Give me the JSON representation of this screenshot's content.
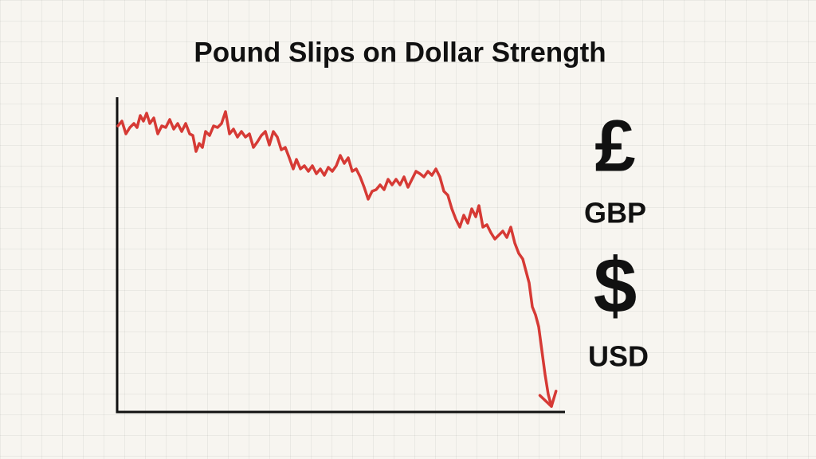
{
  "chart_data": {
    "type": "line",
    "title": "Pound Slips on Dollar Strength",
    "annotations": [
      "£",
      "GBP",
      "$",
      "USD"
    ],
    "color": "#d63a35",
    "xlim": [
      0,
      561
    ],
    "ylim": [
      0,
      395
    ],
    "x": [
      1,
      6,
      11,
      16,
      21,
      25,
      29,
      33,
      37,
      41,
      46,
      51,
      56,
      61,
      66,
      71,
      76,
      81,
      86,
      91,
      95,
      99,
      103,
      107,
      111,
      116,
      121,
      126,
      131,
      136,
      141,
      146,
      151,
      156,
      161,
      166,
      171,
      176,
      181,
      186,
      191,
      196,
      201,
      206,
      211,
      216,
      221,
      225,
      230,
      235,
      240,
      245,
      250,
      255,
      260,
      265,
      270,
      275,
      280,
      285,
      290,
      295,
      300,
      305,
      310,
      315,
      320,
      325,
      330,
      335,
      340,
      345,
      350,
      355,
      360,
      365,
      370,
      375,
      380,
      385,
      390,
      395,
      400,
      405,
      410,
      415,
      420,
      425,
      430,
      435,
      440,
      445,
      450,
      454,
      459,
      464,
      469,
      474,
      479,
      484,
      489,
      494,
      499,
      504,
      509,
      513,
      517,
      521,
      525,
      529,
      533,
      537,
      541,
      545
    ],
    "values": [
      359,
      365,
      349,
      357,
      362,
      357,
      372,
      365,
      375,
      362,
      369,
      349,
      359,
      357,
      367,
      355,
      362,
      352,
      362,
      349,
      347,
      327,
      337,
      332,
      352,
      347,
      359,
      357,
      362,
      377,
      349,
      355,
      345,
      352,
      345,
      349,
      332,
      339,
      347,
      352,
      335,
      352,
      345,
      329,
      332,
      319,
      305,
      317,
      305,
      309,
      302,
      309,
      299,
      305,
      297,
      307,
      302,
      309,
      322,
      312,
      319,
      302,
      305,
      295,
      282,
      267,
      277,
      279,
      285,
      279,
      292,
      285,
      292,
      285,
      295,
      282,
      292,
      302,
      299,
      295,
      302,
      297,
      305,
      295,
      277,
      272,
      255,
      242,
      232,
      247,
      237,
      255,
      245,
      259,
      232,
      235,
      225,
      217,
      222,
      227,
      219,
      232,
      212,
      199,
      192,
      177,
      162,
      132,
      122,
      107,
      77,
      47,
      22,
      7
    ]
  }
}
